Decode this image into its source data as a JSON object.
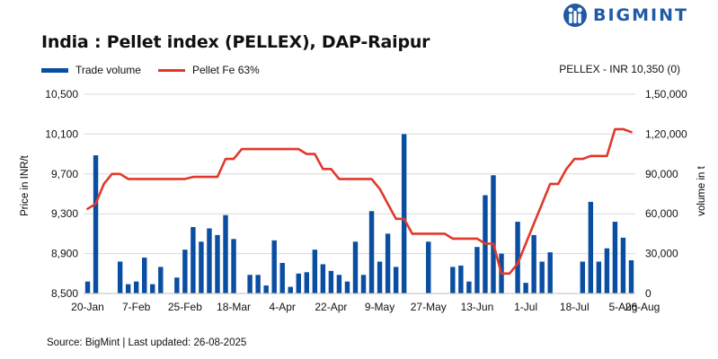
{
  "brand": {
    "name": "BIGMINT",
    "color": "#1f5aa6"
  },
  "title": "India : Pellet index (PELLEX), DAP-Raipur",
  "legend": {
    "bar_label": "Trade volume",
    "line_label": "Pellet Fe 63%",
    "pellex_note": "PELLEX - INR 10,350 (0)"
  },
  "source": "Source: BigMint | Last updated: 26-08-2025",
  "colors": {
    "bar": "#0a4ea2",
    "line": "#e0392b",
    "grid": "#d9d9d9"
  },
  "chart_data": {
    "type": "bar+line",
    "title": "India : Pellet index (PELLEX), DAP-Raipur",
    "ylabel_left": "Price in INR/t",
    "ylabel_right": "volume in t",
    "ylim_left": [
      8500,
      10500
    ],
    "yticks_left": [
      "8,500",
      "8,900",
      "9,300",
      "9,700",
      "10,100",
      "10,500"
    ],
    "ylim_right": [
      0,
      150000
    ],
    "yticks_right": [
      "0",
      "30,000",
      "60,000",
      "90,000",
      "1,20,000",
      "1,50,000"
    ],
    "xtick_labels": [
      "20-Jan",
      "7-Feb",
      "25-Feb",
      "18-Mar",
      "4-Apr",
      "22-Apr",
      "9-May",
      "27-May",
      "13-Jun",
      "1-Jul",
      "18-Jul",
      "5-Aug",
      "26-Aug"
    ],
    "xtick_index": [
      0,
      6,
      12,
      18,
      24,
      30,
      36,
      42,
      48,
      54,
      60,
      66,
      72
    ],
    "grid": "horizontal",
    "legend_position": "top-left",
    "series": [
      {
        "name": "Trade volume",
        "type": "bar",
        "axis": "right",
        "values": [
          9000,
          104000,
          0,
          0,
          24000,
          7000,
          9000,
          27000,
          7000,
          20000,
          0,
          12000,
          33000,
          50000,
          39000,
          49000,
          44000,
          59000,
          41000,
          0,
          14000,
          14000,
          6000,
          40000,
          23000,
          5000,
          15000,
          16000,
          33000,
          22000,
          17000,
          14000,
          9000,
          39000,
          14000,
          62000,
          24000,
          45000,
          20000,
          120000,
          0,
          0,
          39000,
          0,
          0,
          20000,
          21000,
          9000,
          35000,
          74000,
          89000,
          30000,
          0,
          54000,
          8000,
          44000,
          24000,
          31000,
          0,
          0,
          0,
          24000,
          69000,
          24000,
          34000,
          54000,
          42000,
          25000
        ]
      },
      {
        "name": "Pellet Fe 63%",
        "type": "line",
        "axis": "left",
        "values": [
          9350,
          9400,
          9600,
          9700,
          9700,
          9650,
          9650,
          9650,
          9650,
          9650,
          9650,
          9650,
          9650,
          9670,
          9670,
          9670,
          9670,
          9850,
          9850,
          9950,
          9950,
          9950,
          9950,
          9950,
          9950,
          9950,
          9950,
          9900,
          9900,
          9750,
          9750,
          9650,
          9650,
          9650,
          9650,
          9650,
          9550,
          9400,
          9250,
          9250,
          9100,
          9100,
          9100,
          9100,
          9100,
          9050,
          9050,
          9050,
          9050,
          9000,
          9000,
          8700,
          8700,
          8800,
          9000,
          9200,
          9400,
          9600,
          9600,
          9750,
          9850,
          9850,
          9880,
          9880,
          9880,
          10150,
          10150,
          10120
        ]
      }
    ]
  }
}
